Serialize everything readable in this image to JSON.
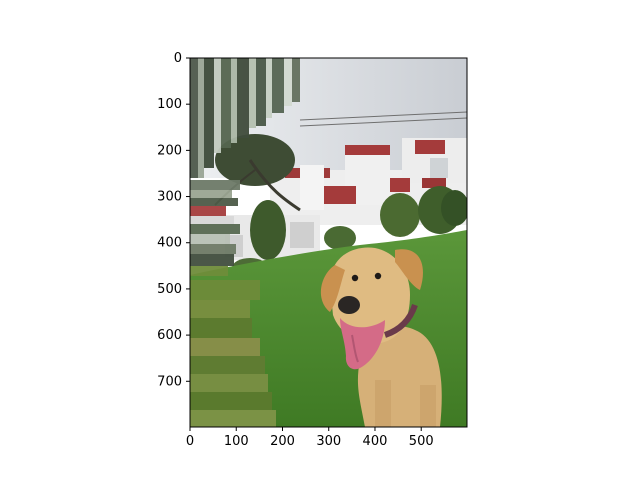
{
  "chart_data": {
    "type": "image",
    "x_ticks": [
      "0",
      "100",
      "200",
      "300",
      "400",
      "500"
    ],
    "y_ticks": [
      "0",
      "100",
      "200",
      "300",
      "400",
      "500",
      "600",
      "700"
    ],
    "xlim": [
      0,
      599
    ],
    "ylim": [
      799,
      0
    ],
    "image_extent": [
      0,
      599,
      799,
      0
    ],
    "palette": {
      "sky": "#d7d9dc",
      "grass": "#4f8a2f",
      "dog": "#d7b07a",
      "building": "#e7e7e7",
      "trim": "#a43b3b",
      "foliage": "#3f4f35",
      "streak_dark": "#3b4b39",
      "streak_light": "#b9c6b5",
      "streak_green": "#6f8d3a"
    }
  }
}
